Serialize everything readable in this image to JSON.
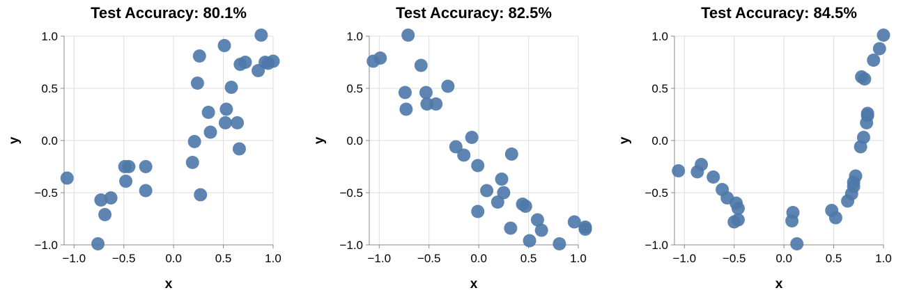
{
  "chart_data": [
    {
      "type": "scatter",
      "title": "Test Accuracy: 80.1%",
      "xlabel": "x",
      "ylabel": "y",
      "xlim": [
        -1.1,
        1.0
      ],
      "ylim": [
        -1.0,
        1.0
      ],
      "xticks": [
        -1.0,
        -0.5,
        0.0,
        0.5,
        1.0
      ],
      "yticks": [
        -1.0,
        -0.5,
        0.0,
        0.5,
        1.0
      ],
      "xtick_labels": [
        "−1.0",
        "−0.5",
        "0.0",
        "0.5",
        "1.0"
      ],
      "ytick_labels": [
        "−1.0",
        "−0.5",
        "0.0",
        "0.5",
        "1.0"
      ],
      "grid": true,
      "point_color": "#4c78a8",
      "points": [
        [
          -1.07,
          -0.36
        ],
        [
          -0.73,
          -0.57
        ],
        [
          -0.69,
          -0.71
        ],
        [
          -0.63,
          -0.55
        ],
        [
          -0.76,
          -0.99
        ],
        [
          -0.49,
          -0.25
        ],
        [
          -0.45,
          -0.25
        ],
        [
          -0.48,
          -0.39
        ],
        [
          -0.28,
          -0.25
        ],
        [
          -0.28,
          -0.48
        ],
        [
          0.19,
          -0.21
        ],
        [
          0.21,
          -0.01
        ],
        [
          0.27,
          -0.52
        ],
        [
          0.24,
          0.55
        ],
        [
          0.26,
          0.81
        ],
        [
          0.35,
          0.27
        ],
        [
          0.37,
          0.08
        ],
        [
          0.53,
          0.3
        ],
        [
          0.52,
          0.17
        ],
        [
          0.58,
          0.51
        ],
        [
          0.64,
          0.17
        ],
        [
          0.66,
          -0.08
        ],
        [
          0.51,
          0.91
        ],
        [
          0.67,
          0.73
        ],
        [
          0.72,
          0.75
        ],
        [
          0.85,
          0.67
        ],
        [
          0.88,
          1.01
        ],
        [
          0.92,
          0.75
        ],
        [
          0.95,
          0.74
        ],
        [
          1.0,
          0.76
        ]
      ]
    },
    {
      "type": "scatter",
      "title": "Test Accuracy: 82.5%",
      "xlabel": "x",
      "ylabel": "y",
      "xlim": [
        -1.1,
        1.0
      ],
      "ylim": [
        -1.0,
        1.0
      ],
      "xticks": [
        -1.0,
        -0.5,
        0.0,
        0.5,
        1.0
      ],
      "yticks": [
        -1.0,
        -0.5,
        0.0,
        0.5,
        1.0
      ],
      "xtick_labels": [
        "−1.0",
        "−0.5",
        "0.0",
        "0.5",
        "1.0"
      ],
      "ytick_labels": [
        "−1.0",
        "−0.5",
        "0.0",
        "0.5",
        "1.0"
      ],
      "grid": true,
      "point_color": "#4c78a8",
      "points": [
        [
          -1.06,
          0.76
        ],
        [
          -0.99,
          0.79
        ],
        [
          -0.74,
          0.46
        ],
        [
          -0.73,
          0.3
        ],
        [
          -0.71,
          1.01
        ],
        [
          -0.58,
          0.72
        ],
        [
          -0.53,
          0.46
        ],
        [
          -0.52,
          0.35
        ],
        [
          -0.43,
          0.35
        ],
        [
          -0.31,
          0.52
        ],
        [
          -0.23,
          -0.06
        ],
        [
          -0.15,
          -0.14
        ],
        [
          -0.07,
          0.03
        ],
        [
          -0.01,
          -0.24
        ],
        [
          -0.01,
          -0.68
        ],
        [
          0.08,
          -0.48
        ],
        [
          0.19,
          -0.59
        ],
        [
          0.23,
          -0.37
        ],
        [
          0.25,
          -0.5
        ],
        [
          0.33,
          -0.13
        ],
        [
          0.32,
          -0.84
        ],
        [
          0.44,
          -0.61
        ],
        [
          0.47,
          -0.63
        ],
        [
          0.51,
          -0.96
        ],
        [
          0.59,
          -0.76
        ],
        [
          0.63,
          -0.86
        ],
        [
          0.81,
          -0.99
        ],
        [
          0.96,
          -0.78
        ],
        [
          1.07,
          -0.83
        ],
        [
          1.07,
          -0.85
        ]
      ]
    },
    {
      "type": "scatter",
      "title": "Test Accuracy: 84.5%",
      "xlabel": "x",
      "ylabel": "y",
      "xlim": [
        -1.1,
        1.0
      ],
      "ylim": [
        -1.0,
        1.0
      ],
      "xticks": [
        -1.0,
        -0.5,
        0.0,
        0.5,
        1.0
      ],
      "yticks": [
        -1.0,
        -0.5,
        0.0,
        0.5,
        1.0
      ],
      "xtick_labels": [
        "−1.0",
        "−0.5",
        "0.0",
        "0.5",
        "1.0"
      ],
      "ytick_labels": [
        "−1.0",
        "−0.5",
        "0.0",
        "0.5",
        "1.0"
      ],
      "grid": true,
      "point_color": "#4c78a8",
      "points": [
        [
          -1.06,
          -0.29
        ],
        [
          -0.87,
          -0.3
        ],
        [
          -0.83,
          -0.23
        ],
        [
          -0.71,
          -0.35
        ],
        [
          -0.62,
          -0.47
        ],
        [
          -0.57,
          -0.55
        ],
        [
          -0.5,
          -0.78
        ],
        [
          -0.48,
          -0.6
        ],
        [
          -0.46,
          -0.65
        ],
        [
          -0.46,
          -0.76
        ],
        [
          0.09,
          -0.69
        ],
        [
          0.08,
          -0.77
        ],
        [
          0.13,
          -0.99
        ],
        [
          0.48,
          -0.67
        ],
        [
          0.52,
          -0.74
        ],
        [
          0.64,
          -0.58
        ],
        [
          0.68,
          -0.51
        ],
        [
          0.7,
          -0.44
        ],
        [
          0.7,
          -0.4
        ],
        [
          0.72,
          -0.34
        ],
        [
          0.77,
          -0.06
        ],
        [
          0.78,
          0.61
        ],
        [
          0.81,
          0.59
        ],
        [
          0.8,
          0.03
        ],
        [
          0.83,
          0.17
        ],
        [
          0.84,
          0.24
        ],
        [
          0.84,
          0.26
        ],
        [
          0.9,
          0.77
        ],
        [
          0.96,
          0.88
        ],
        [
          1.0,
          1.01
        ]
      ]
    }
  ]
}
